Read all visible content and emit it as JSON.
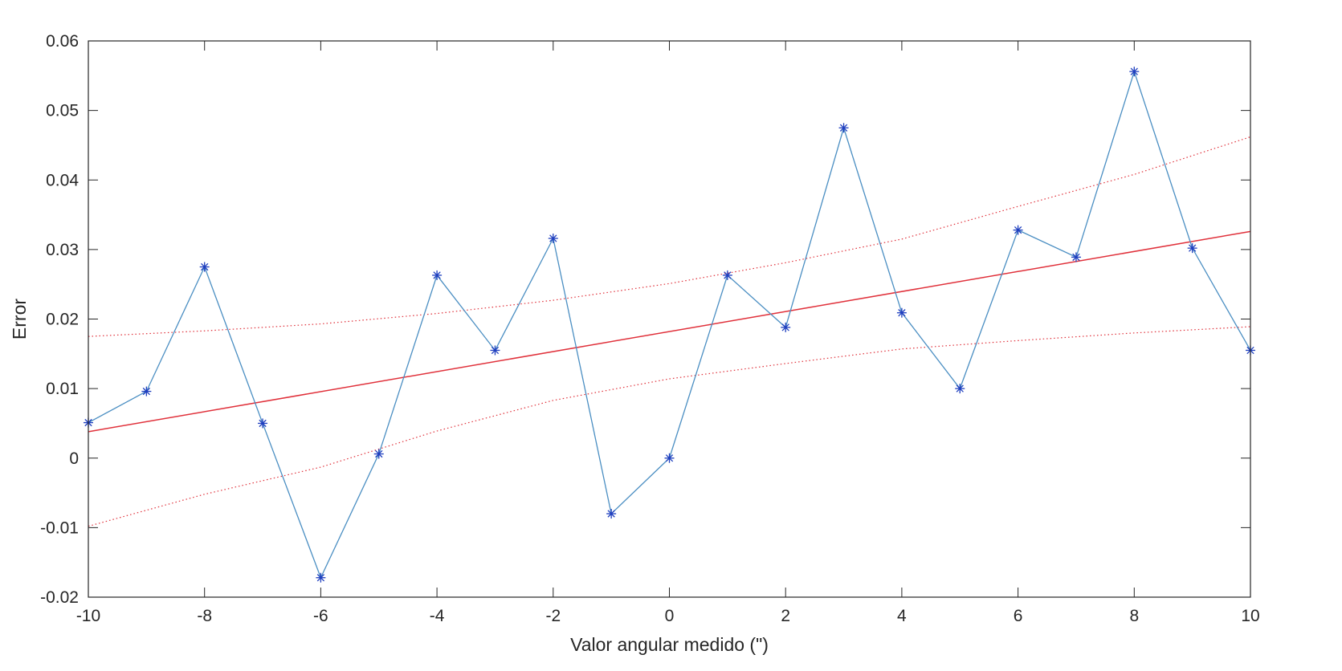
{
  "chart_data": {
    "type": "line",
    "title": "",
    "xlabel": "Valor angular medido (\")",
    "ylabel": "Error",
    "xlim": [
      -10,
      10
    ],
    "ylim": [
      -0.02,
      0.06
    ],
    "grid": false,
    "legend": "none",
    "x_ticks": [
      -10,
      -8,
      -6,
      -4,
      -2,
      0,
      2,
      4,
      6,
      8,
      10
    ],
    "x_tick_labels": [
      "-10",
      "-8",
      "-6",
      "-4",
      "-2",
      "0",
      "2",
      "4",
      "6",
      "8",
      "10"
    ],
    "y_ticks": [
      -0.02,
      -0.01,
      0,
      0.01,
      0.02,
      0.03,
      0.04,
      0.05,
      0.06
    ],
    "y_tick_labels": [
      "-0.02",
      "-0.01",
      "0",
      "0.01",
      "0.02",
      "0.03",
      "0.04",
      "0.05",
      "0.06"
    ],
    "x": [
      -10,
      -9,
      -8,
      -7,
      -6,
      -5,
      -4,
      -3,
      -2,
      -1,
      0,
      1,
      2,
      3,
      4,
      5,
      6,
      7,
      8,
      9,
      10
    ],
    "series": [
      {
        "style": "line-with-asterisk-markers",
        "line_color": "#4a8ec2",
        "marker_color": "#1f3fbf",
        "values": [
          0.0051,
          0.0096,
          0.0275,
          0.005,
          -0.0172,
          0.0006,
          0.0263,
          0.0155,
          0.0316,
          -0.008,
          0.0,
          0.0263,
          0.0188,
          0.0475,
          0.0209,
          0.01,
          0.0328,
          0.0289,
          0.0556,
          0.0302,
          0.0155
        ]
      },
      {
        "style": "solid-fit-line",
        "color": "#e0303a",
        "x": [
          -10,
          10
        ],
        "values": [
          0.0038,
          0.0326
        ]
      },
      {
        "style": "dotted-confidence-band",
        "color": "#e0303a",
        "x": [
          -10,
          -8,
          -6,
          -4,
          -2,
          0,
          2,
          4,
          6,
          8,
          10
        ],
        "values": [
          0.0175,
          0.0183,
          0.0193,
          0.0208,
          0.0227,
          0.0251,
          0.0281,
          0.0315,
          0.0362,
          0.0408,
          0.0462
        ]
      },
      {
        "style": "dotted-confidence-band",
        "color": "#e0303a",
        "x": [
          -10,
          -8,
          -6,
          -4,
          -2,
          0,
          2,
          4,
          6,
          8,
          10
        ],
        "values": [
          -0.0098,
          -0.0052,
          -0.0013,
          0.0039,
          0.0083,
          0.0114,
          0.0136,
          0.0157,
          0.0169,
          0.018,
          0.0189
        ]
      }
    ]
  }
}
